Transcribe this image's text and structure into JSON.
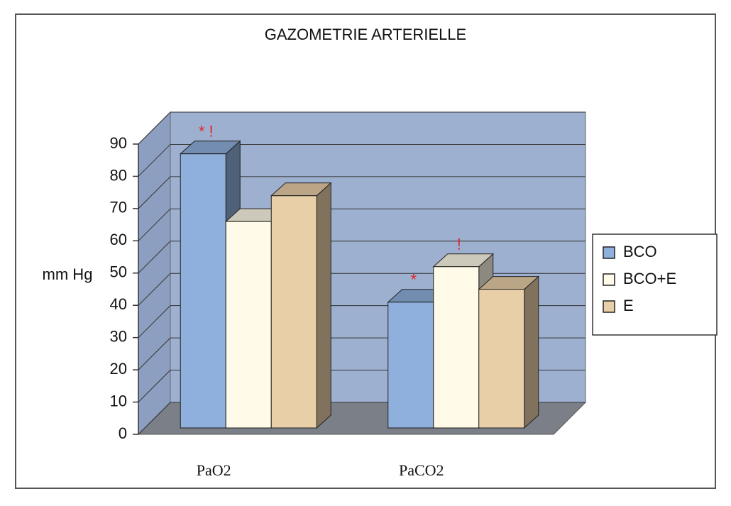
{
  "chart_data": {
    "type": "bar3d",
    "title": "GAZOMETRIE ARTERIELLE",
    "y_label": "mm Hg",
    "categories": [
      "PaO2",
      "PaCO2"
    ],
    "series": [
      {
        "name": "BCO",
        "color": "#8fb0dc",
        "values": [
          85,
          39
        ],
        "annotations": [
          "* !",
          "*"
        ]
      },
      {
        "name": "BCO+E",
        "color": "#fffbe8",
        "values": [
          64,
          50
        ],
        "annotations": [
          null,
          "!"
        ]
      },
      {
        "name": "E",
        "color": "#e8cfa8",
        "values": [
          72,
          43
        ]
      }
    ],
    "ylim": [
      0,
      90
    ],
    "yticks": [
      0,
      10,
      20,
      30,
      40,
      50,
      60,
      70,
      80,
      90
    ],
    "grid": true,
    "legend": "right"
  }
}
